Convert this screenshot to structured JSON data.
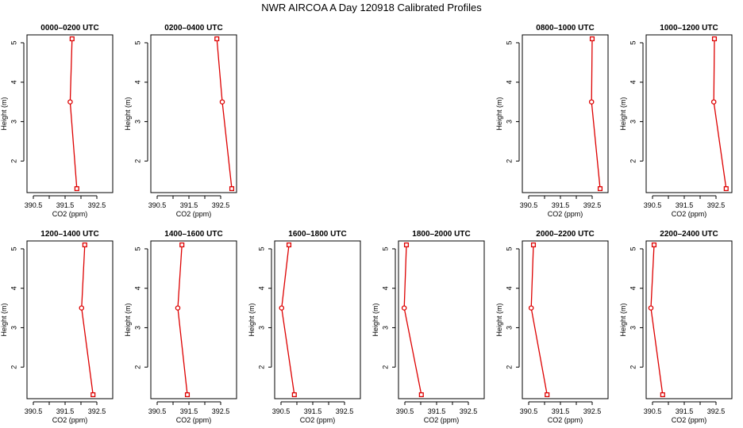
{
  "title": "NWR AIRCOA A  Day 120918  Calibrated Profiles",
  "colors": {
    "series": "#dd0000",
    "axis": "#000000",
    "background": "#ffffff"
  },
  "chart_data": [
    {
      "type": "line",
      "title": "0000–0200 UTC",
      "xlabel": "CO2 (ppm)",
      "ylabel": "Height (m)",
      "xlim": [
        390.3,
        393.0
      ],
      "ylim": [
        1.2,
        5.2
      ],
      "xticks": [
        "390.5",
        "391.5",
        "392.5"
      ],
      "xtick_values": [
        390.5,
        391.0,
        391.5,
        392.0,
        392.5
      ],
      "yticks": [
        "2",
        "3",
        "4",
        "5"
      ],
      "ytick_values": [
        2,
        3,
        4,
        5
      ],
      "series": [
        {
          "x": [
            391.72,
            391.66,
            391.87
          ],
          "y": [
            5.1,
            3.5,
            1.3
          ],
          "markers": [
            "square",
            "circle",
            "square"
          ]
        }
      ]
    },
    {
      "type": "line",
      "title": "0200–0400 UTC",
      "xlabel": "CO2 (ppm)",
      "ylabel": "Height (m)",
      "xlim": [
        390.3,
        393.0
      ],
      "ylim": [
        1.2,
        5.2
      ],
      "xticks": [
        "390.5",
        "391.5",
        "392.5"
      ],
      "xtick_values": [
        390.5,
        391.0,
        391.5,
        392.0,
        392.5
      ],
      "yticks": [
        "2",
        "3",
        "4",
        "5"
      ],
      "ytick_values": [
        2,
        3,
        4,
        5
      ],
      "series": [
        {
          "x": [
            392.38,
            392.55,
            392.85
          ],
          "y": [
            5.1,
            3.5,
            1.3
          ],
          "markers": [
            "square",
            "circle",
            "square"
          ]
        }
      ]
    },
    null,
    null,
    {
      "type": "line",
      "title": "0800–1000 UTC",
      "xlabel": "CO2 (ppm)",
      "ylabel": "Height (m)",
      "xlim": [
        390.3,
        393.0
      ],
      "ylim": [
        1.2,
        5.2
      ],
      "xticks": [
        "390.5",
        "391.5",
        "392.5"
      ],
      "xtick_values": [
        390.5,
        391.0,
        391.5,
        392.0,
        392.5
      ],
      "yticks": [
        "2",
        "3",
        "4",
        "5"
      ],
      "ytick_values": [
        2,
        3,
        4,
        5
      ],
      "series": [
        {
          "x": [
            392.5,
            392.48,
            392.75
          ],
          "y": [
            5.1,
            3.5,
            1.3
          ],
          "markers": [
            "square",
            "circle",
            "square"
          ]
        }
      ]
    },
    {
      "type": "line",
      "title": "1000–1200 UTC",
      "xlabel": "CO2 (ppm)",
      "ylabel": "Height (m)",
      "xlim": [
        390.3,
        393.0
      ],
      "ylim": [
        1.2,
        5.2
      ],
      "xticks": [
        "390.5",
        "391.5",
        "392.5"
      ],
      "xtick_values": [
        390.5,
        391.0,
        391.5,
        392.0,
        392.5
      ],
      "yticks": [
        "2",
        "3",
        "4",
        "5"
      ],
      "ytick_values": [
        2,
        3,
        4,
        5
      ],
      "series": [
        {
          "x": [
            392.45,
            392.43,
            392.82
          ],
          "y": [
            5.1,
            3.5,
            1.3
          ],
          "markers": [
            "square",
            "circle",
            "square"
          ]
        }
      ]
    },
    {
      "type": "line",
      "title": "1200–1400 UTC",
      "xlabel": "CO2 (ppm)",
      "ylabel": "Height (m)",
      "xlim": [
        390.3,
        393.0
      ],
      "ylim": [
        1.2,
        5.2
      ],
      "xticks": [
        "390.5",
        "391.5",
        "392.5"
      ],
      "xtick_values": [
        390.5,
        391.0,
        391.5,
        392.0,
        392.5
      ],
      "yticks": [
        "2",
        "3",
        "4",
        "5"
      ],
      "ytick_values": [
        2,
        3,
        4,
        5
      ],
      "series": [
        {
          "x": [
            392.12,
            392.02,
            392.38
          ],
          "y": [
            5.1,
            3.5,
            1.3
          ],
          "markers": [
            "square",
            "circle",
            "square"
          ]
        }
      ]
    },
    {
      "type": "line",
      "title": "1400–1600 UTC",
      "xlabel": "CO2 (ppm)",
      "ylabel": "Height (m)",
      "xlim": [
        390.3,
        393.0
      ],
      "ylim": [
        1.2,
        5.2
      ],
      "xticks": [
        "390.5",
        "391.5",
        "392.5"
      ],
      "xtick_values": [
        390.5,
        391.0,
        391.5,
        392.0,
        392.5
      ],
      "yticks": [
        "2",
        "3",
        "4",
        "5"
      ],
      "ytick_values": [
        2,
        3,
        4,
        5
      ],
      "series": [
        {
          "x": [
            391.28,
            391.15,
            391.45
          ],
          "y": [
            5.1,
            3.5,
            1.3
          ],
          "markers": [
            "square",
            "circle",
            "square"
          ]
        }
      ]
    },
    {
      "type": "line",
      "title": "1600–1800 UTC",
      "xlabel": "CO2 (ppm)",
      "ylabel": "Height (m)",
      "xlim": [
        390.3,
        393.0
      ],
      "ylim": [
        1.2,
        5.2
      ],
      "xticks": [
        "390.5",
        "391.5",
        "392.5"
      ],
      "xtick_values": [
        390.5,
        391.0,
        391.5,
        392.0,
        392.5
      ],
      "yticks": [
        "2",
        "3",
        "4",
        "5"
      ],
      "ytick_values": [
        2,
        3,
        4,
        5
      ],
      "series": [
        {
          "x": [
            390.75,
            390.52,
            390.92
          ],
          "y": [
            5.1,
            3.5,
            1.3
          ],
          "markers": [
            "square",
            "circle",
            "square"
          ]
        }
      ]
    },
    {
      "type": "line",
      "title": "1800–2000 UTC",
      "xlabel": "CO2 (ppm)",
      "ylabel": "Height (m)",
      "xlim": [
        390.3,
        393.0
      ],
      "ylim": [
        1.2,
        5.2
      ],
      "xticks": [
        "390.5",
        "391.5",
        "392.5"
      ],
      "xtick_values": [
        390.5,
        391.0,
        391.5,
        392.0,
        392.5
      ],
      "yticks": [
        "2",
        "3",
        "4",
        "5"
      ],
      "ytick_values": [
        2,
        3,
        4,
        5
      ],
      "series": [
        {
          "x": [
            390.55,
            390.48,
            391.02
          ],
          "y": [
            5.1,
            3.5,
            1.3
          ],
          "markers": [
            "square",
            "circle",
            "square"
          ]
        }
      ]
    },
    {
      "type": "line",
      "title": "2000–2200 UTC",
      "xlabel": "CO2 (ppm)",
      "ylabel": "Height (m)",
      "xlim": [
        390.3,
        393.0
      ],
      "ylim": [
        1.2,
        5.2
      ],
      "xticks": [
        "390.5",
        "391.5",
        "392.5"
      ],
      "xtick_values": [
        390.5,
        391.0,
        391.5,
        392.0,
        392.5
      ],
      "yticks": [
        "2",
        "3",
        "4",
        "5"
      ],
      "ytick_values": [
        2,
        3,
        4,
        5
      ],
      "series": [
        {
          "x": [
            390.65,
            390.58,
            391.08
          ],
          "y": [
            5.1,
            3.5,
            1.3
          ],
          "markers": [
            "square",
            "circle",
            "square"
          ]
        }
      ]
    },
    {
      "type": "line",
      "title": "2200–2400 UTC",
      "xlabel": "CO2 (ppm)",
      "ylabel": "Height (m)",
      "xlim": [
        390.3,
        393.0
      ],
      "ylim": [
        1.2,
        5.2
      ],
      "xticks": [
        "390.5",
        "391.5",
        "392.5"
      ],
      "xtick_values": [
        390.5,
        391.0,
        391.5,
        392.0,
        392.5
      ],
      "yticks": [
        "2",
        "3",
        "4",
        "5"
      ],
      "ytick_values": [
        2,
        3,
        4,
        5
      ],
      "series": [
        {
          "x": [
            390.55,
            390.45,
            390.82
          ],
          "y": [
            5.1,
            3.5,
            1.3
          ],
          "markers": [
            "square",
            "circle",
            "square"
          ]
        }
      ]
    }
  ]
}
